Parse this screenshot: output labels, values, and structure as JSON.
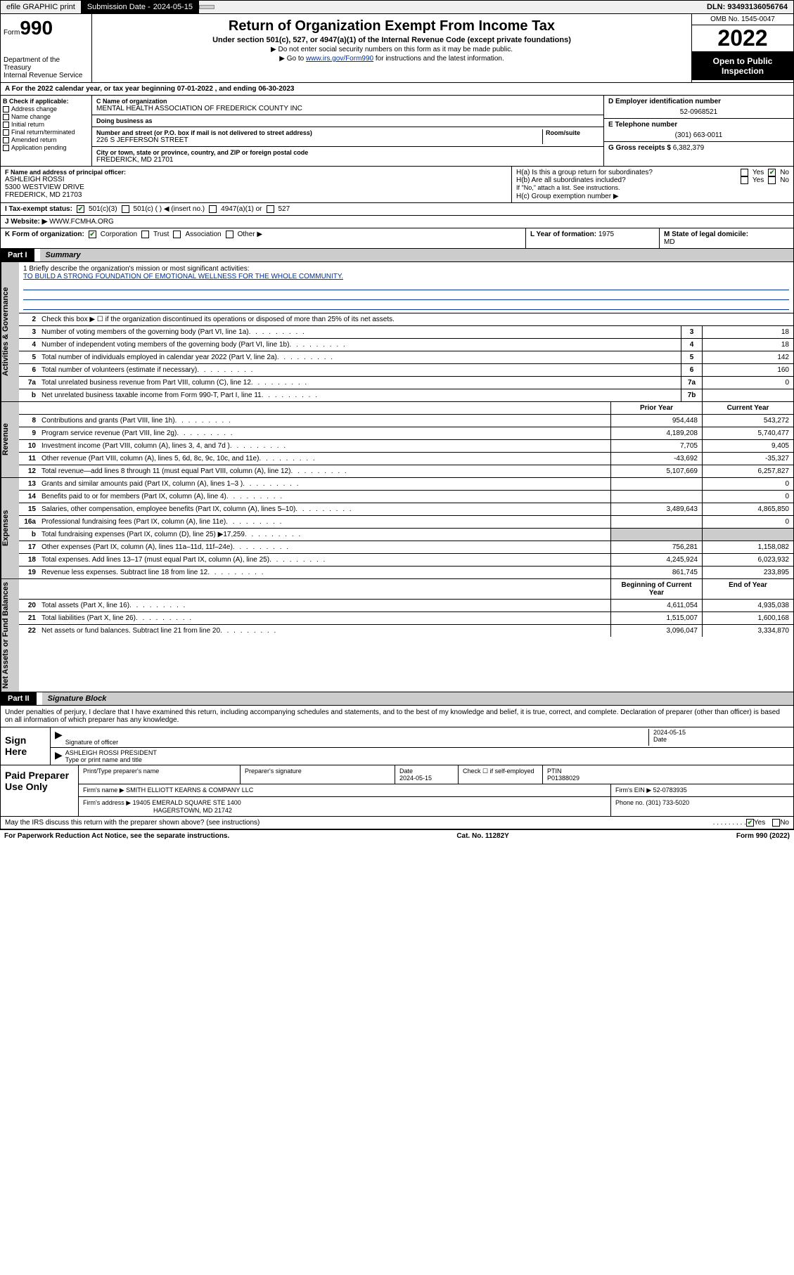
{
  "topbar": {
    "efile": "efile GRAPHIC print",
    "subdate_label": "Submission Date - ",
    "subdate": "2024-05-15",
    "dln_label": "DLN: ",
    "dln": "93493136056764"
  },
  "hdr": {
    "form_prefix": "Form",
    "form_num": "990",
    "dept": "Department of the Treasury\nInternal Revenue Service",
    "title": "Return of Organization Exempt From Income Tax",
    "sub": "Under section 501(c), 527, or 4947(a)(1) of the Internal Revenue Code (except private foundations)",
    "note1": "▶ Do not enter social security numbers on this form as it may be made public.",
    "note2_pre": "▶ Go to ",
    "note2_link": "www.irs.gov/Form990",
    "note2_post": " for instructions and the latest information.",
    "omb": "OMB No. 1545-0047",
    "year": "2022",
    "open": "Open to Public Inspection"
  },
  "row_a": "A For the 2022 calendar year, or tax year beginning 07-01-2022   , and ending 06-30-2023",
  "col_b": {
    "title": "B Check if applicable:",
    "items": [
      "Address change",
      "Name change",
      "Initial return",
      "Final return/terminated",
      "Amended return",
      "Application pending"
    ]
  },
  "col_c": {
    "name_lbl": "C Name of organization",
    "name": "MENTAL HEALTH ASSOCIATION OF FREDERICK COUNTY INC",
    "dba_lbl": "Doing business as",
    "addr_lbl": "Number and street (or P.O. box if mail is not delivered to street address)",
    "addr": "226 S JEFFERSON STREET",
    "room_lbl": "Room/suite",
    "city_lbl": "City or town, state or province, country, and ZIP or foreign postal code",
    "city": "FREDERICK, MD  21701"
  },
  "col_de": {
    "d_lbl": "D Employer identification number",
    "d_val": "52-0968521",
    "e_lbl": "E Telephone number",
    "e_val": "(301) 663-0011",
    "g_lbl": "G Gross receipts $ ",
    "g_val": "6,382,379"
  },
  "row_f": {
    "lbl": "F Name and address of principal officer:",
    "name": "ASHLEIGH ROSSI",
    "addr1": "5300 WESTVIEW DRIVE",
    "addr2": "FREDERICK, MD  21703"
  },
  "row_h": {
    "ha": "H(a)  Is this a group return for subordinates?",
    "ha_yes": "Yes",
    "ha_no": "No",
    "hb": "H(b)  Are all subordinates included?",
    "hb_yes": "Yes",
    "hb_no": "No",
    "hb_note": "If \"No,\" attach a list. See instructions.",
    "hc": "H(c)  Group exemption number ▶"
  },
  "row_i": {
    "lbl": "I   Tax-exempt status:",
    "o1": "501(c)(3)",
    "o2": "501(c) (  ) ◀ (insert no.)",
    "o3": "4947(a)(1) or",
    "o4": "527"
  },
  "row_j": {
    "lbl": "J   Website: ▶",
    "val": "WWW.FCMHA.ORG"
  },
  "row_k": {
    "lbl": "K Form of organization:",
    "o1": "Corporation",
    "o2": "Trust",
    "o3": "Association",
    "o4": "Other ▶"
  },
  "row_l": {
    "lbl": "L Year of formation: ",
    "val": "1975"
  },
  "row_m": {
    "lbl": "M State of legal domicile:",
    "val": "MD"
  },
  "part1": {
    "pt": "Part I",
    "title": "Summary"
  },
  "vtabs": {
    "ag": "Activities & Governance",
    "rev": "Revenue",
    "exp": "Expenses",
    "na": "Net Assets or Fund Balances"
  },
  "mission": {
    "lbl": "1   Briefly describe the organization's mission or most significant activities:",
    "txt": "TO BUILD A STRONG FOUNDATION OF EMOTIONAL WELLNESS FOR THE WHOLE COMMUNITY."
  },
  "line2": "Check this box ▶ ☐  if the organization discontinued its operations or disposed of more than 25% of its net assets.",
  "ag_lines": [
    {
      "n": "3",
      "t": "Number of voting members of the governing body (Part VI, line 1a)",
      "ref": "3",
      "v": "18"
    },
    {
      "n": "4",
      "t": "Number of independent voting members of the governing body (Part VI, line 1b)",
      "ref": "4",
      "v": "18"
    },
    {
      "n": "5",
      "t": "Total number of individuals employed in calendar year 2022 (Part V, line 2a)",
      "ref": "5",
      "v": "142"
    },
    {
      "n": "6",
      "t": "Total number of volunteers (estimate if necessary)",
      "ref": "6",
      "v": "160"
    },
    {
      "n": "7a",
      "t": "Total unrelated business revenue from Part VIII, column (C), line 12",
      "ref": "7a",
      "v": "0"
    },
    {
      "n": "b",
      "t": "Net unrelated business taxable income from Form 990-T, Part I, line 11",
      "ref": "7b",
      "v": ""
    }
  ],
  "colhdr": {
    "prior": "Prior Year",
    "current": "Current Year",
    "boy": "Beginning of Current Year",
    "eoy": "End of Year"
  },
  "rev_lines": [
    {
      "n": "8",
      "t": "Contributions and grants (Part VIII, line 1h)",
      "p": "954,448",
      "c": "543,272"
    },
    {
      "n": "9",
      "t": "Program service revenue (Part VIII, line 2g)",
      "p": "4,189,208",
      "c": "5,740,477"
    },
    {
      "n": "10",
      "t": "Investment income (Part VIII, column (A), lines 3, 4, and 7d )",
      "p": "7,705",
      "c": "9,405"
    },
    {
      "n": "11",
      "t": "Other revenue (Part VIII, column (A), lines 5, 6d, 8c, 9c, 10c, and 11e)",
      "p": "-43,692",
      "c": "-35,327"
    },
    {
      "n": "12",
      "t": "Total revenue—add lines 8 through 11 (must equal Part VIII, column (A), line 12)",
      "p": "5,107,669",
      "c": "6,257,827"
    }
  ],
  "exp_lines": [
    {
      "n": "13",
      "t": "Grants and similar amounts paid (Part IX, column (A), lines 1–3 )",
      "p": "",
      "c": "0"
    },
    {
      "n": "14",
      "t": "Benefits paid to or for members (Part IX, column (A), line 4)",
      "p": "",
      "c": "0"
    },
    {
      "n": "15",
      "t": "Salaries, other compensation, employee benefits (Part IX, column (A), lines 5–10)",
      "p": "3,489,643",
      "c": "4,865,850"
    },
    {
      "n": "16a",
      "t": "Professional fundraising fees (Part IX, column (A), line 11e)",
      "p": "",
      "c": "0"
    },
    {
      "n": "b",
      "t": "Total fundraising expenses (Part IX, column (D), line 25) ▶17,259",
      "p": "shade",
      "c": "shade"
    },
    {
      "n": "17",
      "t": "Other expenses (Part IX, column (A), lines 11a–11d, 11f–24e)",
      "p": "756,281",
      "c": "1,158,082"
    },
    {
      "n": "18",
      "t": "Total expenses. Add lines 13–17 (must equal Part IX, column (A), line 25)",
      "p": "4,245,924",
      "c": "6,023,932"
    },
    {
      "n": "19",
      "t": "Revenue less expenses. Subtract line 18 from line 12",
      "p": "861,745",
      "c": "233,895"
    }
  ],
  "na_lines": [
    {
      "n": "20",
      "t": "Total assets (Part X, line 16)",
      "p": "4,611,054",
      "c": "4,935,038"
    },
    {
      "n": "21",
      "t": "Total liabilities (Part X, line 26)",
      "p": "1,515,007",
      "c": "1,600,168"
    },
    {
      "n": "22",
      "t": "Net assets or fund balances. Subtract line 21 from line 20",
      "p": "3,096,047",
      "c": "3,334,870"
    }
  ],
  "part2": {
    "pt": "Part II",
    "title": "Signature Block"
  },
  "sig": {
    "decl": "Under penalties of perjury, I declare that I have examined this return, including accompanying schedules and statements, and to the best of my knowledge and belief, it is true, correct, and complete. Declaration of preparer (other than officer) is based on all information of which preparer has any knowledge.",
    "sign_here": "Sign Here",
    "sig_officer": "Signature of officer",
    "date": "2024-05-15",
    "date_lbl": "Date",
    "name": "ASHLEIGH ROSSI  PRESIDENT",
    "name_lbl": "Type or print name and title"
  },
  "paid": {
    "title": "Paid Preparer Use Only",
    "h1": "Print/Type preparer's name",
    "h2": "Preparer's signature",
    "h3": "Date",
    "h3v": "2024-05-15",
    "h4": "Check ☐ if self-employed",
    "h5": "PTIN",
    "h5v": "P01388029",
    "firm_lbl": "Firm's name    ▶",
    "firm": "SMITH ELLIOTT KEARNS & COMPANY LLC",
    "ein_lbl": "Firm's EIN ▶",
    "ein": "52-0783935",
    "addr_lbl": "Firm's address ▶",
    "addr1": "19405 EMERALD SQUARE STE 1400",
    "addr2": "HAGERSTOWN, MD  21742",
    "phone_lbl": "Phone no. ",
    "phone": "(301) 733-5020"
  },
  "discuss": {
    "txt": "May the IRS discuss this return with the preparer shown above? (see instructions)",
    "yes": "Yes",
    "no": "No"
  },
  "footer": {
    "l": "For Paperwork Reduction Act Notice, see the separate instructions.",
    "m": "Cat. No. 11282Y",
    "r": "Form 990 (2022)"
  },
  "colors": {
    "link": "#003399",
    "shade": "#cccccc",
    "check": "#1a7a1a"
  }
}
